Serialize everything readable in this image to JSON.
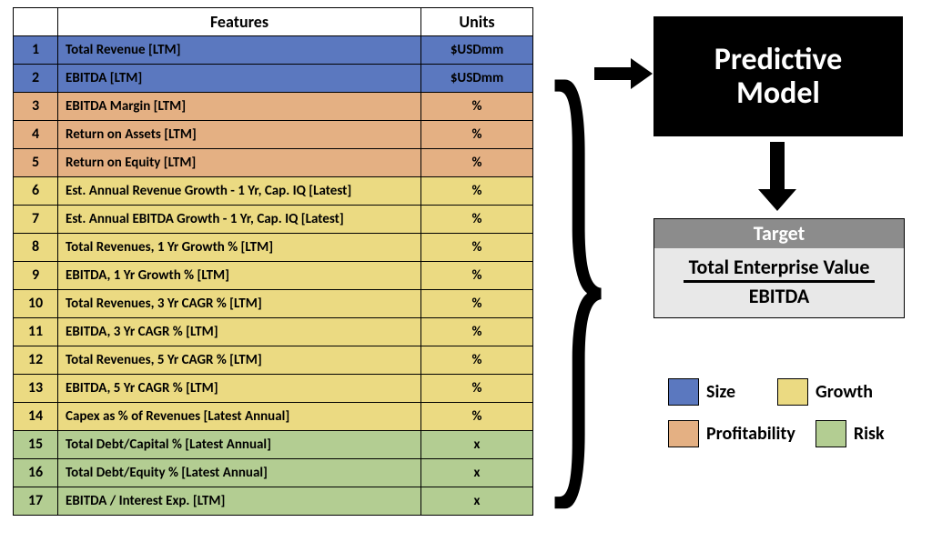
{
  "colors": {
    "size": "#5b78bf",
    "profitability": "#e4b083",
    "growth": "#ebda82",
    "risk": "#b3cd92",
    "header": "#ffffff",
    "target_head": "#8c8c8c",
    "target_body": "#e8e8e8"
  },
  "table": {
    "headers": {
      "features": "Features",
      "units": "Units"
    },
    "rows": [
      {
        "n": "1",
        "feature": "Total Revenue [LTM]",
        "unit": "$USDmm",
        "cat": "size"
      },
      {
        "n": "2",
        "feature": "EBITDA [LTM]",
        "unit": "$USDmm",
        "cat": "size"
      },
      {
        "n": "3",
        "feature": "EBITDA Margin [LTM]",
        "unit": "%",
        "cat": "profitability"
      },
      {
        "n": "4",
        "feature": "Return on Assets [LTM]",
        "unit": "%",
        "cat": "profitability"
      },
      {
        "n": "5",
        "feature": "Return on Equity [LTM]",
        "unit": "%",
        "cat": "profitability"
      },
      {
        "n": "6",
        "feature": "Est. Annual Revenue Growth - 1 Yr, Cap. IQ [Latest]",
        "unit": "%",
        "cat": "growth"
      },
      {
        "n": "7",
        "feature": "Est. Annual EBITDA Growth - 1 Yr, Cap. IQ [Latest]",
        "unit": "%",
        "cat": "growth"
      },
      {
        "n": "8",
        "feature": "Total Revenues, 1 Yr Growth % [LTM]",
        "unit": "%",
        "cat": "growth"
      },
      {
        "n": "9",
        "feature": "EBITDA, 1 Yr Growth % [LTM]",
        "unit": "%",
        "cat": "growth"
      },
      {
        "n": "10",
        "feature": "Total Revenues, 3 Yr CAGR % [LTM]",
        "unit": "%",
        "cat": "growth"
      },
      {
        "n": "11",
        "feature": "EBITDA, 3 Yr CAGR % [LTM]",
        "unit": "%",
        "cat": "growth"
      },
      {
        "n": "12",
        "feature": "Total Revenues, 5 Yr CAGR % [LTM]",
        "unit": "%",
        "cat": "growth"
      },
      {
        "n": "13",
        "feature": "EBITDA, 5 Yr CAGR % [LTM]",
        "unit": "%",
        "cat": "growth"
      },
      {
        "n": "14",
        "feature": "Capex as % of Revenues [Latest Annual]",
        "unit": "%",
        "cat": "growth"
      },
      {
        "n": "15",
        "feature": "Total Debt/Capital % [Latest Annual]",
        "unit": "x",
        "cat": "risk"
      },
      {
        "n": "16",
        "feature": "Total Debt/Equity % [Latest Annual]",
        "unit": "x",
        "cat": "risk"
      },
      {
        "n": "17",
        "feature": "EBITDA / Interest Exp. [LTM]",
        "unit": "x",
        "cat": "risk"
      }
    ]
  },
  "model_box": {
    "line1": "Predictive",
    "line2": "Model"
  },
  "target": {
    "head": "Target",
    "numerator": "Total Enterprise Value",
    "denominator": "EBITDA"
  },
  "legend": {
    "size": "Size",
    "growth": "Growth",
    "profitability": "Profitability",
    "risk": "Risk"
  }
}
